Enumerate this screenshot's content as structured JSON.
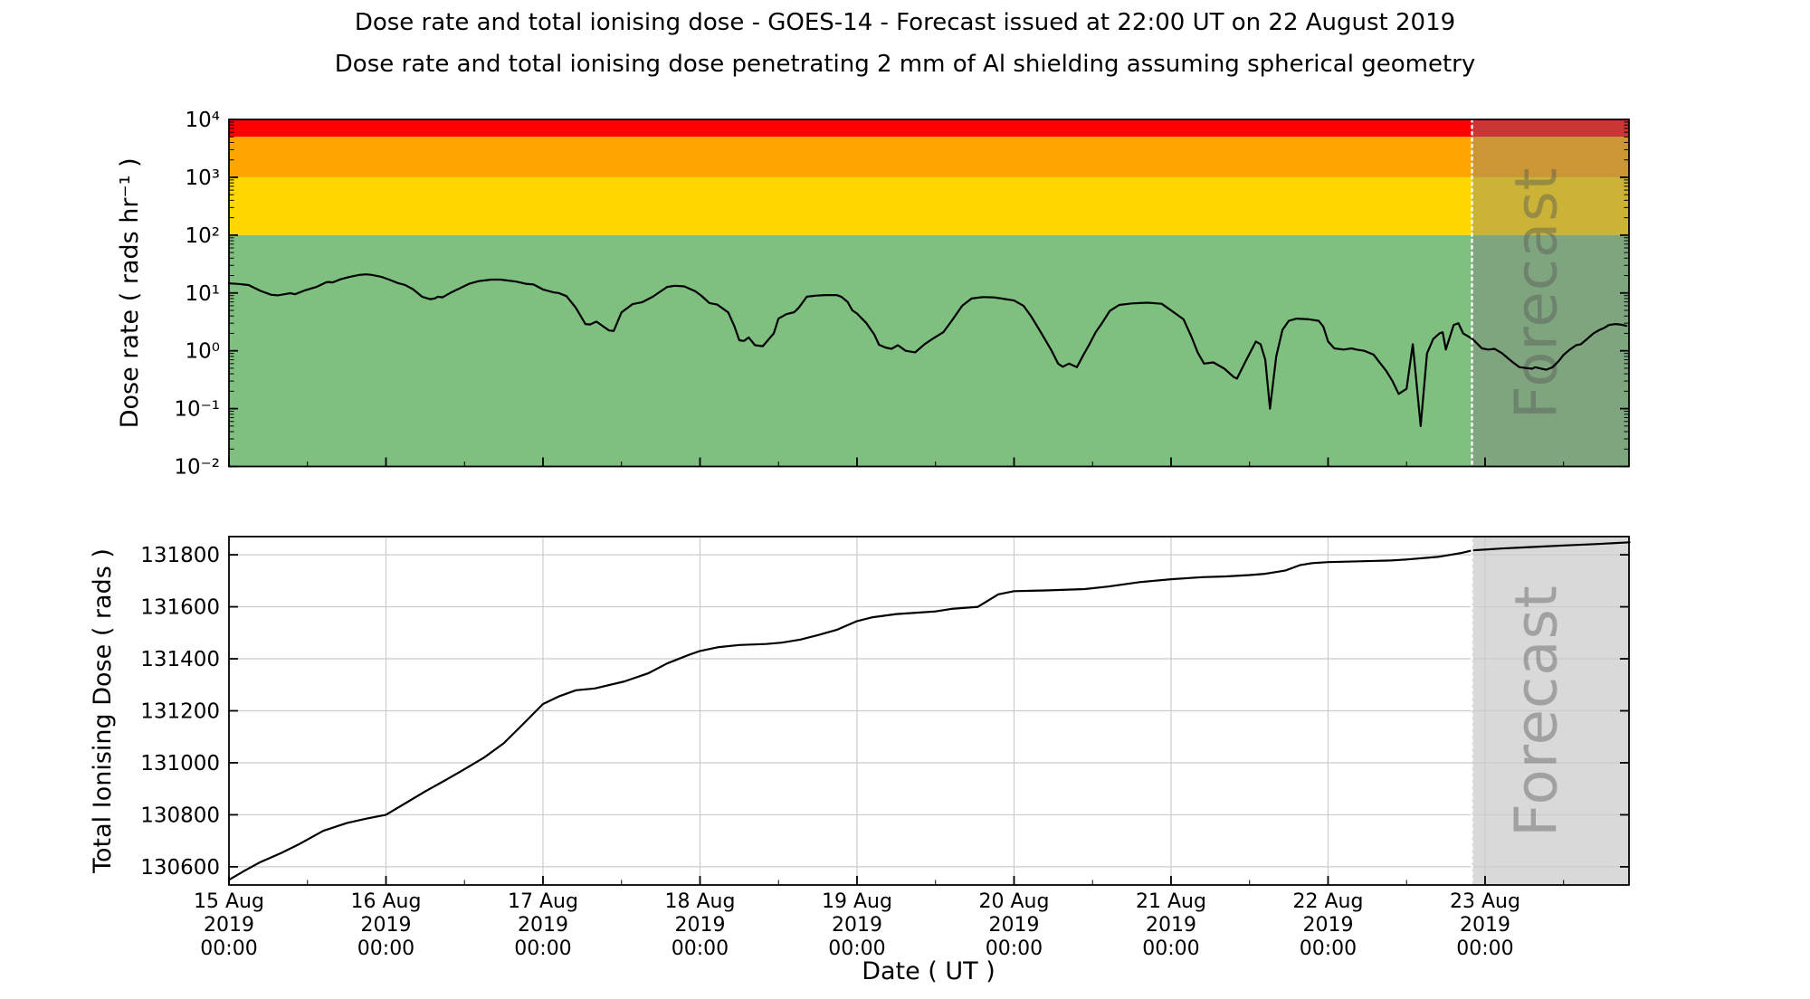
{
  "title": "Dose rate and total ionising dose - GOES-14 - Forecast issued at 22:00 UT on 22 August 2019",
  "subtitle": "Dose rate and total ionising dose penetrating 2 mm of Al shielding assuming spherical geometry",
  "watermark": {
    "label": "Forecast"
  },
  "xlabel": "Date ( UT )",
  "colors": {
    "band_red": "#ff0000",
    "band_orange": "#ffa500",
    "band_gold": "#ffd700",
    "band_green": "#7fbf7f",
    "forecast_overlay": "rgba(128,128,128,0.42)",
    "forecast_fill_bottom": "#d9d9d9",
    "grid": "#cccccc",
    "line": "#000000",
    "divider": "#ffffff"
  },
  "x_axis": {
    "unit": "days since 15 Aug 2019 00:00 UT",
    "domain_days": [
      0,
      8.9167
    ],
    "forecast_start_day": 7.9167,
    "major_tick_days": [
      0,
      1,
      2,
      3,
      4,
      5,
      6,
      7,
      8
    ],
    "minor_tick_step_days": 0.5,
    "tick_labels": [
      {
        "lines": [
          "15 Aug",
          "2019",
          "00:00"
        ]
      },
      {
        "lines": [
          "16 Aug",
          "2019",
          "00:00"
        ]
      },
      {
        "lines": [
          "17 Aug",
          "2019",
          "00:00"
        ]
      },
      {
        "lines": [
          "18 Aug",
          "2019",
          "00:00"
        ]
      },
      {
        "lines": [
          "19 Aug",
          "2019",
          "00:00"
        ]
      },
      {
        "lines": [
          "20 Aug",
          "2019",
          "00:00"
        ]
      },
      {
        "lines": [
          "21 Aug",
          "2019",
          "00:00"
        ]
      },
      {
        "lines": [
          "22 Aug",
          "2019",
          "00:00"
        ]
      },
      {
        "lines": [
          "23 Aug",
          "2019",
          "00:00"
        ]
      }
    ]
  },
  "chart_data": [
    {
      "type": "line",
      "name": "dose-rate",
      "ylabel": "Dose rate ( rads hr⁻¹ )",
      "yscale": "log",
      "ylim": [
        0.01,
        10000
      ],
      "grid": false,
      "legend": "none",
      "yticks": [
        {
          "value": 10000,
          "label": "10⁴"
        },
        {
          "value": 1000,
          "label": "10³"
        },
        {
          "value": 100,
          "label": "10²"
        },
        {
          "value": 10,
          "label": "10¹"
        },
        {
          "value": 1,
          "label": "10⁰"
        },
        {
          "value": 0.1,
          "label": "10⁻¹"
        },
        {
          "value": 0.01,
          "label": "10⁻²"
        }
      ],
      "threshold_bands": [
        {
          "name": "red-band",
          "color": "#ff0000",
          "from": 5000,
          "to": 10000
        },
        {
          "name": "orange-band",
          "color": "#ffa500",
          "from": 1000,
          "to": 5000
        },
        {
          "name": "gold-band",
          "color": "#ffd700",
          "from": 100,
          "to": 1000
        },
        {
          "name": "green-band",
          "color": "#7fbf7f",
          "from": 0.01,
          "to": 100
        }
      ],
      "points": [
        [
          0.0,
          14.7
        ],
        [
          0.06,
          14.3
        ],
        [
          0.125,
          13.7
        ],
        [
          0.2,
          10.9
        ],
        [
          0.27,
          9.3
        ],
        [
          0.31,
          9.1
        ],
        [
          0.36,
          9.6
        ],
        [
          0.39,
          9.9
        ],
        [
          0.42,
          9.5
        ],
        [
          0.48,
          11.0
        ],
        [
          0.56,
          12.8
        ],
        [
          0.61,
          14.9
        ],
        [
          0.63,
          15.5
        ],
        [
          0.66,
          15.2
        ],
        [
          0.71,
          17.2
        ],
        [
          0.77,
          19.0
        ],
        [
          0.83,
          20.5
        ],
        [
          0.875,
          21.0
        ],
        [
          0.91,
          20.5
        ],
        [
          0.97,
          19.0
        ],
        [
          1.02,
          17.0
        ],
        [
          1.08,
          14.7
        ],
        [
          1.12,
          13.8
        ],
        [
          1.17,
          11.7
        ],
        [
          1.23,
          8.6
        ],
        [
          1.28,
          7.8
        ],
        [
          1.31,
          8.0
        ],
        [
          1.33,
          8.6
        ],
        [
          1.36,
          8.4
        ],
        [
          1.42,
          10.4
        ],
        [
          1.48,
          12.4
        ],
        [
          1.53,
          14.4
        ],
        [
          1.59,
          16.0
        ],
        [
          1.67,
          17.0
        ],
        [
          1.73,
          17.0
        ],
        [
          1.83,
          15.7
        ],
        [
          1.89,
          14.4
        ],
        [
          1.94,
          14.0
        ],
        [
          2.0,
          11.5
        ],
        [
          2.07,
          10.2
        ],
        [
          2.1,
          10.0
        ],
        [
          2.15,
          8.8
        ],
        [
          2.21,
          5.5
        ],
        [
          2.27,
          2.9
        ],
        [
          2.3,
          2.85
        ],
        [
          2.34,
          3.2
        ],
        [
          2.42,
          2.25
        ],
        [
          2.45,
          2.2
        ],
        [
          2.5,
          4.6
        ],
        [
          2.57,
          6.4
        ],
        [
          2.63,
          6.9
        ],
        [
          2.7,
          8.6
        ],
        [
          2.79,
          12.7
        ],
        [
          2.84,
          13.3
        ],
        [
          2.9,
          13.0
        ],
        [
          2.97,
          10.7
        ],
        [
          3.01,
          8.9
        ],
        [
          3.06,
          6.7
        ],
        [
          3.11,
          6.3
        ],
        [
          3.18,
          4.6
        ],
        [
          3.22,
          2.6
        ],
        [
          3.25,
          1.52
        ],
        [
          3.28,
          1.48
        ],
        [
          3.31,
          1.7
        ],
        [
          3.35,
          1.25
        ],
        [
          3.4,
          1.2
        ],
        [
          3.47,
          2.0
        ],
        [
          3.5,
          3.6
        ],
        [
          3.55,
          4.3
        ],
        [
          3.6,
          4.65
        ],
        [
          3.63,
          5.6
        ],
        [
          3.68,
          8.6
        ],
        [
          3.74,
          9.0
        ],
        [
          3.8,
          9.2
        ],
        [
          3.87,
          9.2
        ],
        [
          3.9,
          8.6
        ],
        [
          3.94,
          7.0
        ],
        [
          3.97,
          5.0
        ],
        [
          4.0,
          4.4
        ],
        [
          4.06,
          3.0
        ],
        [
          4.11,
          1.9
        ],
        [
          4.14,
          1.27
        ],
        [
          4.18,
          1.14
        ],
        [
          4.22,
          1.08
        ],
        [
          4.26,
          1.25
        ],
        [
          4.31,
          1.0
        ],
        [
          4.37,
          0.94
        ],
        [
          4.43,
          1.3
        ],
        [
          4.48,
          1.6
        ],
        [
          4.55,
          2.1
        ],
        [
          4.61,
          3.5
        ],
        [
          4.67,
          6.0
        ],
        [
          4.73,
          8.0
        ],
        [
          4.8,
          8.5
        ],
        [
          4.87,
          8.4
        ],
        [
          4.92,
          8.0
        ],
        [
          5.0,
          7.4
        ],
        [
          5.06,
          6.0
        ],
        [
          5.11,
          3.9
        ],
        [
          5.17,
          2.1
        ],
        [
          5.24,
          1.0
        ],
        [
          5.28,
          0.6
        ],
        [
          5.31,
          0.53
        ],
        [
          5.35,
          0.6
        ],
        [
          5.4,
          0.52
        ],
        [
          5.44,
          0.83
        ],
        [
          5.48,
          1.3
        ],
        [
          5.52,
          2.1
        ],
        [
          5.56,
          3.0
        ],
        [
          5.61,
          4.9
        ],
        [
          5.67,
          6.2
        ],
        [
          5.75,
          6.6
        ],
        [
          5.85,
          6.8
        ],
        [
          5.94,
          6.5
        ],
        [
          6.0,
          5.0
        ],
        [
          6.08,
          3.5
        ],
        [
          6.13,
          1.75
        ],
        [
          6.17,
          0.93
        ],
        [
          6.21,
          0.6
        ],
        [
          6.27,
          0.63
        ],
        [
          6.34,
          0.49
        ],
        [
          6.4,
          0.35
        ],
        [
          6.42,
          0.33
        ],
        [
          6.48,
          0.7
        ],
        [
          6.54,
          1.45
        ],
        [
          6.57,
          1.3
        ],
        [
          6.6,
          0.7
        ],
        [
          6.63,
          0.1
        ],
        [
          6.67,
          0.8
        ],
        [
          6.71,
          2.3
        ],
        [
          6.75,
          3.3
        ],
        [
          6.8,
          3.6
        ],
        [
          6.88,
          3.5
        ],
        [
          6.94,
          3.3
        ],
        [
          6.97,
          2.6
        ],
        [
          7.0,
          1.45
        ],
        [
          7.04,
          1.1
        ],
        [
          7.1,
          1.05
        ],
        [
          7.15,
          1.1
        ],
        [
          7.18,
          1.05
        ],
        [
          7.23,
          1.0
        ],
        [
          7.29,
          0.86
        ],
        [
          7.33,
          0.62
        ],
        [
          7.37,
          0.45
        ],
        [
          7.41,
          0.3
        ],
        [
          7.45,
          0.18
        ],
        [
          7.5,
          0.22
        ],
        [
          7.54,
          1.3
        ],
        [
          7.59,
          0.05
        ],
        [
          7.63,
          0.9
        ],
        [
          7.67,
          1.6
        ],
        [
          7.71,
          2.0
        ],
        [
          7.73,
          2.1
        ],
        [
          7.75,
          1.05
        ],
        [
          7.8,
          2.8
        ],
        [
          7.83,
          3.0
        ],
        [
          7.86,
          2.0
        ],
        [
          7.92,
          1.6
        ],
        [
          7.98,
          1.1
        ],
        [
          8.02,
          1.05
        ],
        [
          8.06,
          1.08
        ],
        [
          8.11,
          0.9
        ],
        [
          8.18,
          0.62
        ],
        [
          8.22,
          0.52
        ],
        [
          8.27,
          0.5
        ],
        [
          8.3,
          0.49
        ],
        [
          8.32,
          0.52
        ],
        [
          8.36,
          0.49
        ],
        [
          8.39,
          0.47
        ],
        [
          8.43,
          0.52
        ],
        [
          8.47,
          0.67
        ],
        [
          8.5,
          0.85
        ],
        [
          8.54,
          1.05
        ],
        [
          8.58,
          1.25
        ],
        [
          8.61,
          1.3
        ],
        [
          8.65,
          1.6
        ],
        [
          8.69,
          2.0
        ],
        [
          8.73,
          2.3
        ],
        [
          8.76,
          2.5
        ],
        [
          8.79,
          2.8
        ],
        [
          8.83,
          2.9
        ],
        [
          8.86,
          2.85
        ],
        [
          8.9,
          2.7
        ]
      ]
    },
    {
      "type": "line",
      "name": "total-ionising-dose",
      "ylabel": "Total Ionising Dose ( rads )",
      "yscale": "linear",
      "ylim": [
        130530,
        131870
      ],
      "grid": true,
      "legend": "none",
      "yticks": [
        {
          "value": 130600,
          "label": "130600"
        },
        {
          "value": 130800,
          "label": "130800"
        },
        {
          "value": 131000,
          "label": "131000"
        },
        {
          "value": 131200,
          "label": "131200"
        },
        {
          "value": 131400,
          "label": "131400"
        },
        {
          "value": 131600,
          "label": "131600"
        },
        {
          "value": 131800,
          "label": "131800"
        }
      ],
      "points": [
        [
          0.0,
          130550
        ],
        [
          0.1,
          130585
        ],
        [
          0.2,
          130618
        ],
        [
          0.33,
          130652
        ],
        [
          0.45,
          130688
        ],
        [
          0.6,
          130738
        ],
        [
          0.75,
          130768
        ],
        [
          0.875,
          130785
        ],
        [
          1.0,
          130800
        ],
        [
          1.125,
          130845
        ],
        [
          1.25,
          130890
        ],
        [
          1.375,
          130932
        ],
        [
          1.5,
          130975
        ],
        [
          1.625,
          131020
        ],
        [
          1.75,
          131075
        ],
        [
          1.875,
          131150
        ],
        [
          2.0,
          131226
        ],
        [
          2.1,
          131255
        ],
        [
          2.21,
          131279
        ],
        [
          2.33,
          131286
        ],
        [
          2.52,
          131313
        ],
        [
          2.67,
          131344
        ],
        [
          2.79,
          131382
        ],
        [
          2.92,
          131413
        ],
        [
          3.0,
          131430
        ],
        [
          3.12,
          131445
        ],
        [
          3.25,
          131453
        ],
        [
          3.42,
          131457
        ],
        [
          3.52,
          131462
        ],
        [
          3.64,
          131474
        ],
        [
          3.75,
          131491
        ],
        [
          3.87,
          131511
        ],
        [
          4.0,
          131545
        ],
        [
          4.1,
          131560
        ],
        [
          4.25,
          131572
        ],
        [
          4.4,
          131578
        ],
        [
          4.5,
          131582
        ],
        [
          4.6,
          131592
        ],
        [
          4.77,
          131600
        ],
        [
          4.9,
          131648
        ],
        [
          5.0,
          131660
        ],
        [
          5.2,
          131663
        ],
        [
          5.45,
          131668
        ],
        [
          5.6,
          131678
        ],
        [
          5.8,
          131695
        ],
        [
          6.0,
          131706
        ],
        [
          6.2,
          131714
        ],
        [
          6.35,
          131717
        ],
        [
          6.5,
          131722
        ],
        [
          6.6,
          131727
        ],
        [
          6.73,
          131740
        ],
        [
          6.82,
          131760
        ],
        [
          6.9,
          131768
        ],
        [
          7.0,
          131772
        ],
        [
          7.2,
          131775
        ],
        [
          7.4,
          131778
        ],
        [
          7.5,
          131782
        ],
        [
          7.7,
          131792
        ],
        [
          7.85,
          131807
        ],
        [
          7.92,
          131817
        ],
        [
          8.1,
          131824
        ],
        [
          8.3,
          131830
        ],
        [
          8.5,
          131836
        ],
        [
          8.7,
          131841
        ],
        [
          8.92,
          131848
        ]
      ]
    }
  ]
}
